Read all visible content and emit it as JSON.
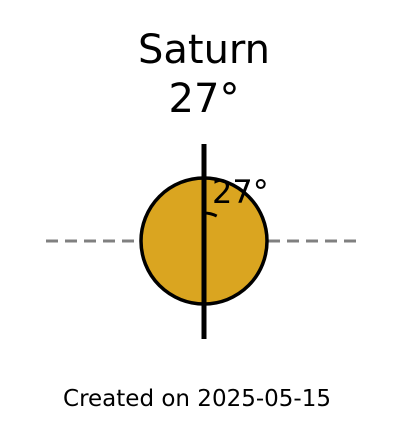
{
  "title": {
    "planet": "Saturn",
    "tilt": "27°"
  },
  "diagram": {
    "planet_color": "#DAA520",
    "outline_color": "#000000",
    "equator_color": "#808080",
    "axial_tilt_deg": 27,
    "angle_label": "27°"
  },
  "footer": {
    "created": "Created on 2025-05-15"
  }
}
